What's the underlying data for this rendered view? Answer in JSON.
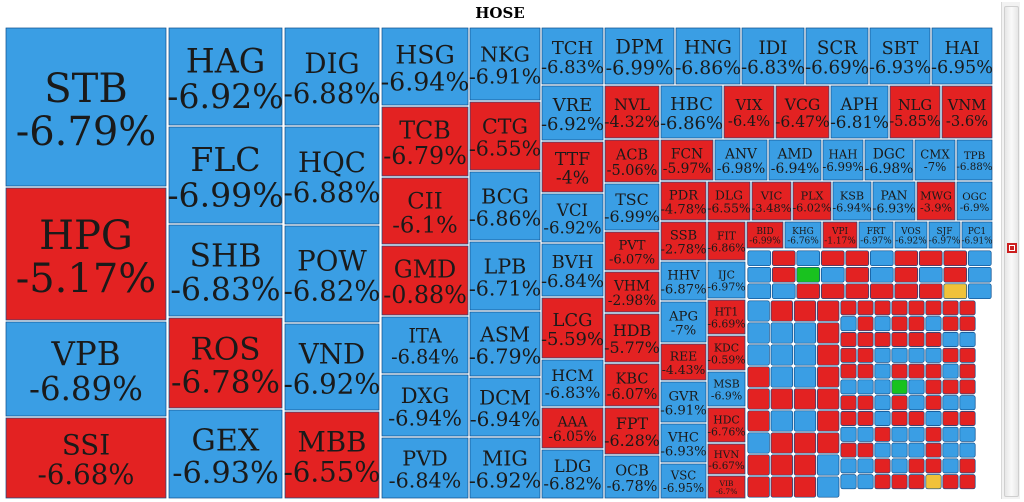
{
  "colors": {
    "down": "#3a9ee4",
    "red": "#e32222",
    "cell_border": "#0c4c8a",
    "text": "#1a1a1a",
    "green": "#19c21f",
    "yellow": "#f0c23a"
  },
  "chart_data": {
    "type": "treemap",
    "title": "HOSE",
    "tiles": [
      {
        "ticker": "STB",
        "change": "-6.79%",
        "color": "blue"
      },
      {
        "ticker": "HPG",
        "change": "-5.17%",
        "color": "red"
      },
      {
        "ticker": "VPB",
        "change": "-6.89%",
        "color": "blue"
      },
      {
        "ticker": "SSI",
        "change": "-6.68%",
        "color": "red"
      },
      {
        "ticker": "HAG",
        "change": "-6.92%",
        "color": "blue"
      },
      {
        "ticker": "FLC",
        "change": "-6.99%",
        "color": "blue"
      },
      {
        "ticker": "SHB",
        "change": "-6.83%",
        "color": "blue"
      },
      {
        "ticker": "ROS",
        "change": "-6.78%",
        "color": "red"
      },
      {
        "ticker": "GEX",
        "change": "-6.93%",
        "color": "blue"
      },
      {
        "ticker": "DIG",
        "change": "-6.88%",
        "color": "blue"
      },
      {
        "ticker": "HQC",
        "change": "-6.88%",
        "color": "blue"
      },
      {
        "ticker": "POW",
        "change": "-6.82%",
        "color": "blue"
      },
      {
        "ticker": "VND",
        "change": "-6.92%",
        "color": "blue"
      },
      {
        "ticker": "MBB",
        "change": "-6.55%",
        "color": "red"
      },
      {
        "ticker": "HSG",
        "change": "-6.94%",
        "color": "blue"
      },
      {
        "ticker": "TCB",
        "change": "-6.79%",
        "color": "red"
      },
      {
        "ticker": "CII",
        "change": "-6.1%",
        "color": "red"
      },
      {
        "ticker": "GMD",
        "change": "-0.88%",
        "color": "red"
      },
      {
        "ticker": "ITA",
        "change": "-6.84%",
        "color": "blue"
      },
      {
        "ticker": "DXG",
        "change": "-6.94%",
        "color": "blue"
      },
      {
        "ticker": "PVD",
        "change": "-6.84%",
        "color": "blue"
      },
      {
        "ticker": "NKG",
        "change": "-6.91%",
        "color": "blue"
      },
      {
        "ticker": "CTG",
        "change": "-6.55%",
        "color": "red"
      },
      {
        "ticker": "BCG",
        "change": "-6.86%",
        "color": "blue"
      },
      {
        "ticker": "LPB",
        "change": "-6.71%",
        "color": "blue"
      },
      {
        "ticker": "ASM",
        "change": "-6.79%",
        "color": "blue"
      },
      {
        "ticker": "DCM",
        "change": "-6.94%",
        "color": "blue"
      },
      {
        "ticker": "MIG",
        "change": "-6.92%",
        "color": "blue"
      },
      {
        "ticker": "TCH",
        "change": "-6.83%",
        "color": "blue"
      },
      {
        "ticker": "DPM",
        "change": "-6.99%",
        "color": "blue"
      },
      {
        "ticker": "HNG",
        "change": "-6.86%",
        "color": "blue"
      },
      {
        "ticker": "IDI",
        "change": "-6.83%",
        "color": "blue"
      },
      {
        "ticker": "SCR",
        "change": "-6.69%",
        "color": "blue"
      },
      {
        "ticker": "SBT",
        "change": "-6.93%",
        "color": "blue"
      },
      {
        "ticker": "HAI",
        "change": "-6.95%",
        "color": "blue"
      },
      {
        "ticker": "VRE",
        "change": "-6.92%",
        "color": "blue"
      },
      {
        "ticker": "NVL",
        "change": "-4.32%",
        "color": "red"
      },
      {
        "ticker": "HBC",
        "change": "-6.86%",
        "color": "blue"
      },
      {
        "ticker": "VIX",
        "change": "-6.4%",
        "color": "red"
      },
      {
        "ticker": "VCG",
        "change": "-6.47%",
        "color": "red"
      },
      {
        "ticker": "APH",
        "change": "-6.81%",
        "color": "blue"
      },
      {
        "ticker": "NLG",
        "change": "-5.85%",
        "color": "red"
      },
      {
        "ticker": "VNM",
        "change": "-3.6%",
        "color": "red"
      },
      {
        "ticker": "TTF",
        "change": "-4%",
        "color": "red"
      },
      {
        "ticker": "ACB",
        "change": "-5.06%",
        "color": "red"
      },
      {
        "ticker": "FCN",
        "change": "-5.97%",
        "color": "red"
      },
      {
        "ticker": "ANV",
        "change": "-6.98%",
        "color": "blue"
      },
      {
        "ticker": "AMD",
        "change": "-6.94%",
        "color": "blue"
      },
      {
        "ticker": "HAH",
        "change": "-6.99%",
        "color": "blue"
      },
      {
        "ticker": "DGC",
        "change": "-6.98%",
        "color": "blue"
      },
      {
        "ticker": "CMX",
        "change": "-7%",
        "color": "blue"
      },
      {
        "ticker": "TPB",
        "change": "-6.88%",
        "color": "blue"
      },
      {
        "ticker": "VCI",
        "change": "-6.92%",
        "color": "blue"
      },
      {
        "ticker": "TSC",
        "change": "-6.99%",
        "color": "blue"
      },
      {
        "ticker": "PDR",
        "change": "-4.78%",
        "color": "red"
      },
      {
        "ticker": "DLG",
        "change": "-6.55%",
        "color": "red"
      },
      {
        "ticker": "VIC",
        "change": "-3.48%",
        "color": "red"
      },
      {
        "ticker": "PLX",
        "change": "-6.02%",
        "color": "red"
      },
      {
        "ticker": "KSB",
        "change": "-6.94%",
        "color": "blue"
      },
      {
        "ticker": "PAN",
        "change": "-6.93%",
        "color": "blue"
      },
      {
        "ticker": "MWG",
        "change": "-3.9%",
        "color": "red"
      },
      {
        "ticker": "OGC",
        "change": "-6.9%",
        "color": "blue"
      },
      {
        "ticker": "BVH",
        "change": "-6.84%",
        "color": "blue"
      },
      {
        "ticker": "PVT",
        "change": "-6.07%",
        "color": "red"
      },
      {
        "ticker": "SSB",
        "change": "-2.78%",
        "color": "red"
      },
      {
        "ticker": "FIT",
        "change": "-6.86%",
        "color": "red"
      },
      {
        "ticker": "BID",
        "change": "-6.99%",
        "color": "red"
      },
      {
        "ticker": "KHG",
        "change": "-6.76%",
        "color": "blue"
      },
      {
        "ticker": "VPI",
        "change": "-1.17%",
        "color": "red"
      },
      {
        "ticker": "FRT",
        "change": "-6.97%",
        "color": "blue"
      },
      {
        "ticker": "VOS",
        "change": "-6.92%",
        "color": "blue"
      },
      {
        "ticker": "SJF",
        "change": "-6.97%",
        "color": "blue"
      },
      {
        "ticker": "PC1",
        "change": "-6.91%",
        "color": "blue"
      },
      {
        "ticker": "VHM",
        "change": "-2.98%",
        "color": "red"
      },
      {
        "ticker": "HHV",
        "change": "-6.87%",
        "color": "blue"
      },
      {
        "ticker": "IJC",
        "change": "-6.97%",
        "color": "blue"
      },
      {
        "ticker": "LCG",
        "change": "-5.59%",
        "color": "red"
      },
      {
        "ticker": "HDB",
        "change": "-5.77%",
        "color": "red"
      },
      {
        "ticker": "APG",
        "change": "-7%",
        "color": "blue"
      },
      {
        "ticker": "HT1",
        "change": "-6.69%",
        "color": "red"
      },
      {
        "ticker": "HCM",
        "change": "-6.83%",
        "color": "blue"
      },
      {
        "ticker": "KBC",
        "change": "-6.07%",
        "color": "red"
      },
      {
        "ticker": "REE",
        "change": "-4.43%",
        "color": "red"
      },
      {
        "ticker": "KDC",
        "change": "-0.59%",
        "color": "red"
      },
      {
        "ticker": "GVR",
        "change": "-6.91%",
        "color": "blue"
      },
      {
        "ticker": "MSB",
        "change": "-6.9%",
        "color": "blue"
      },
      {
        "ticker": "AAA",
        "change": "-6.05%",
        "color": "red"
      },
      {
        "ticker": "FPT",
        "change": "-6.28%",
        "color": "red"
      },
      {
        "ticker": "VHC",
        "change": "-6.93%",
        "color": "blue"
      },
      {
        "ticker": "HDC",
        "change": "-6.76%",
        "color": "red"
      },
      {
        "ticker": "LDG",
        "change": "-6.82%",
        "color": "blue"
      },
      {
        "ticker": "OCB",
        "change": "-6.78%",
        "color": "blue"
      },
      {
        "ticker": "VSC",
        "change": "-6.95%",
        "color": "blue"
      },
      {
        "ticker": "HVN",
        "change": "-6.67%",
        "color": "red"
      },
      {
        "ticker": "VIB",
        "change": "-6.7%",
        "color": "red"
      }
    ]
  }
}
